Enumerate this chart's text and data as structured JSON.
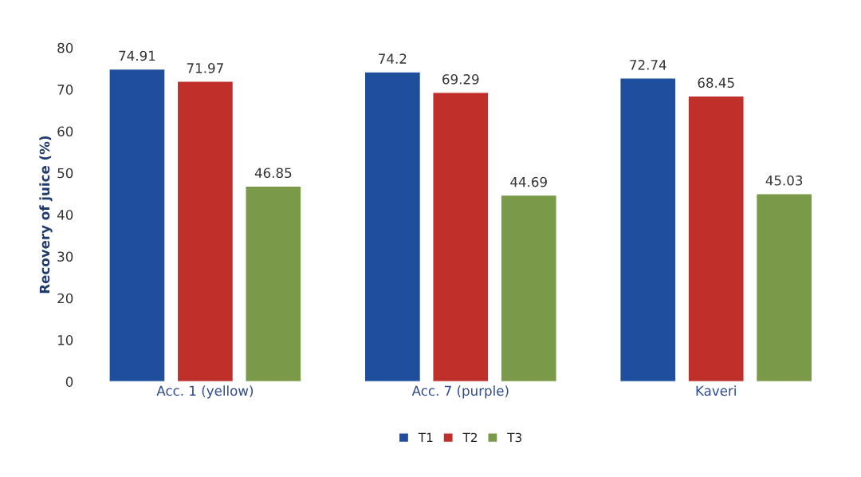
{
  "chart_data": {
    "type": "bar",
    "ylabel": "Recovery of juice (%)",
    "categories": [
      "Acc. 1 (yellow)",
      "Acc. 7 (purple)",
      "Kaveri"
    ],
    "series": [
      {
        "name": "T1",
        "color": "#1f4e9c",
        "values": [
          74.91,
          74.2,
          72.74
        ]
      },
      {
        "name": "T2",
        "color": "#c0302a",
        "values": [
          71.97,
          69.29,
          68.45
        ]
      },
      {
        "name": "T3",
        "color": "#7a9a4a",
        "values": [
          46.85,
          44.69,
          45.03
        ]
      }
    ],
    "ylim": [
      0,
      80
    ],
    "yticks": [
      0,
      10,
      20,
      30,
      40,
      50,
      60,
      70,
      80
    ],
    "data_labels": true,
    "legend": "bottom",
    "grid": false
  }
}
